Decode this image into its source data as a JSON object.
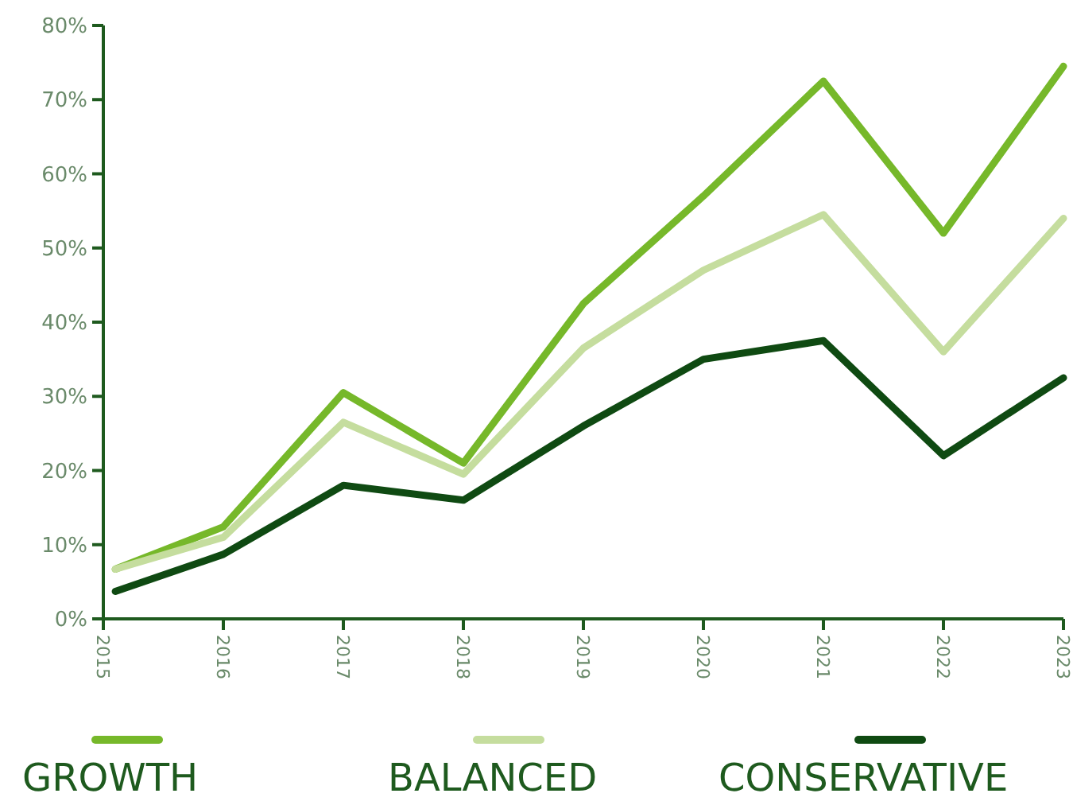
{
  "chart_data": {
    "type": "line",
    "x": [
      2015.1,
      2016,
      2017,
      2018,
      2019,
      2020,
      2021,
      2022,
      2023
    ],
    "series": [
      {
        "name": "GROWTH",
        "color": "#76b82a",
        "values": [
          6.7,
          12.4,
          30.5,
          21,
          42.5,
          57,
          72.5,
          52,
          74.5
        ]
      },
      {
        "name": "BALANCED",
        "color": "#c5dd9e",
        "values": [
          6.7,
          11,
          26.5,
          19.5,
          36.5,
          47,
          54.5,
          36,
          54
        ]
      },
      {
        "name": "CONSERVATIVE",
        "color": "#0f4a12",
        "values": [
          3.7,
          8.7,
          18,
          16,
          26,
          35,
          37.5,
          22,
          32.5
        ]
      }
    ],
    "xlim": [
      2015,
      2023
    ],
    "xticks": [
      2015,
      2016,
      2017,
      2018,
      2019,
      2020,
      2021,
      2022,
      2023
    ],
    "ylim": [
      0,
      80
    ],
    "yticks": [
      {
        "value": 0,
        "label": "0%"
      },
      {
        "value": 10,
        "label": "10%"
      },
      {
        "value": 20,
        "label": "20%"
      },
      {
        "value": 30,
        "label": "30%"
      },
      {
        "value": 40,
        "label": "40%"
      },
      {
        "value": 50,
        "label": "50%"
      },
      {
        "value": 60,
        "label": "60%"
      },
      {
        "value": 70,
        "label": "70%"
      },
      {
        "value": 80,
        "label": "80%"
      }
    ],
    "grid": false,
    "legend": "bottom",
    "marker": "none",
    "line_style": "solid"
  }
}
